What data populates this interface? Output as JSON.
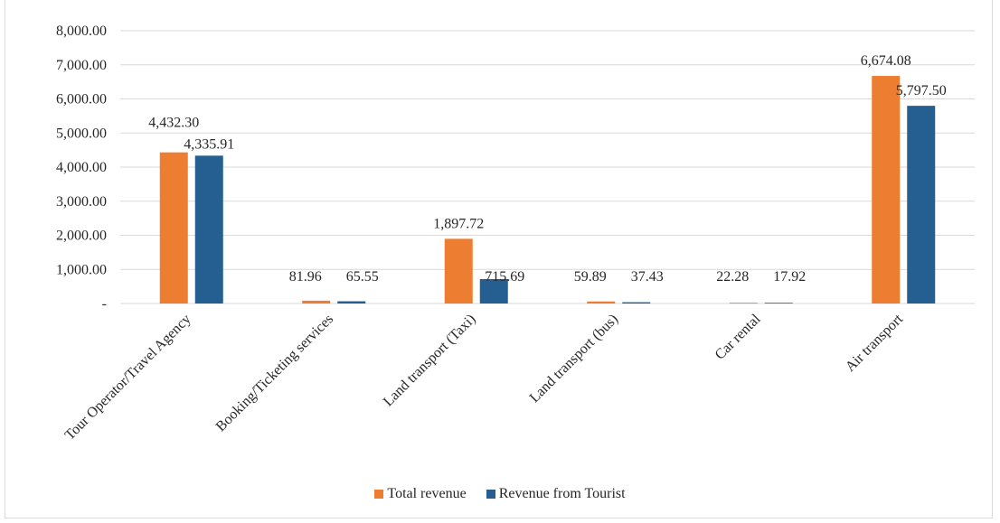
{
  "chart_data": {
    "type": "bar",
    "title": "",
    "xlabel": "",
    "ylabel": "",
    "ylim": [
      0,
      8000
    ],
    "yticks": [
      {
        "value": 0,
        "label": "-"
      },
      {
        "value": 1000,
        "label": "1,000.00"
      },
      {
        "value": 2000,
        "label": "2,000.00"
      },
      {
        "value": 3000,
        "label": "3,000.00"
      },
      {
        "value": 4000,
        "label": "4,000.00"
      },
      {
        "value": 5000,
        "label": "5,000.00"
      },
      {
        "value": 6000,
        "label": "6,000.00"
      },
      {
        "value": 7000,
        "label": "7,000.00"
      },
      {
        "value": 8000,
        "label": "8,000.00"
      }
    ],
    "grid": true,
    "legend_position": "bottom",
    "categories": [
      "Tour Operator/Travel Agency",
      "Booking/Ticketing services",
      "Land transport (Taxi)",
      "Land transport (bus)",
      "Car rental",
      "Air transport"
    ],
    "series": [
      {
        "name": "Total revenue",
        "color": "#ed7d31",
        "values": [
          4432.3,
          81.96,
          1897.72,
          59.89,
          22.28,
          6674.08
        ],
        "labels": [
          "4,432.30",
          "81.96",
          "1,897.72",
          "59.89",
          "22.28",
          "6,674.08"
        ]
      },
      {
        "name": "Revenue from Tourist",
        "color": "#255e91",
        "values": [
          4335.91,
          65.55,
          715.69,
          37.43,
          17.92,
          5797.5
        ],
        "labels": [
          "4,335.91",
          "65.55",
          "715.69",
          "37.43",
          "17.92",
          "5,797.50"
        ]
      }
    ]
  }
}
